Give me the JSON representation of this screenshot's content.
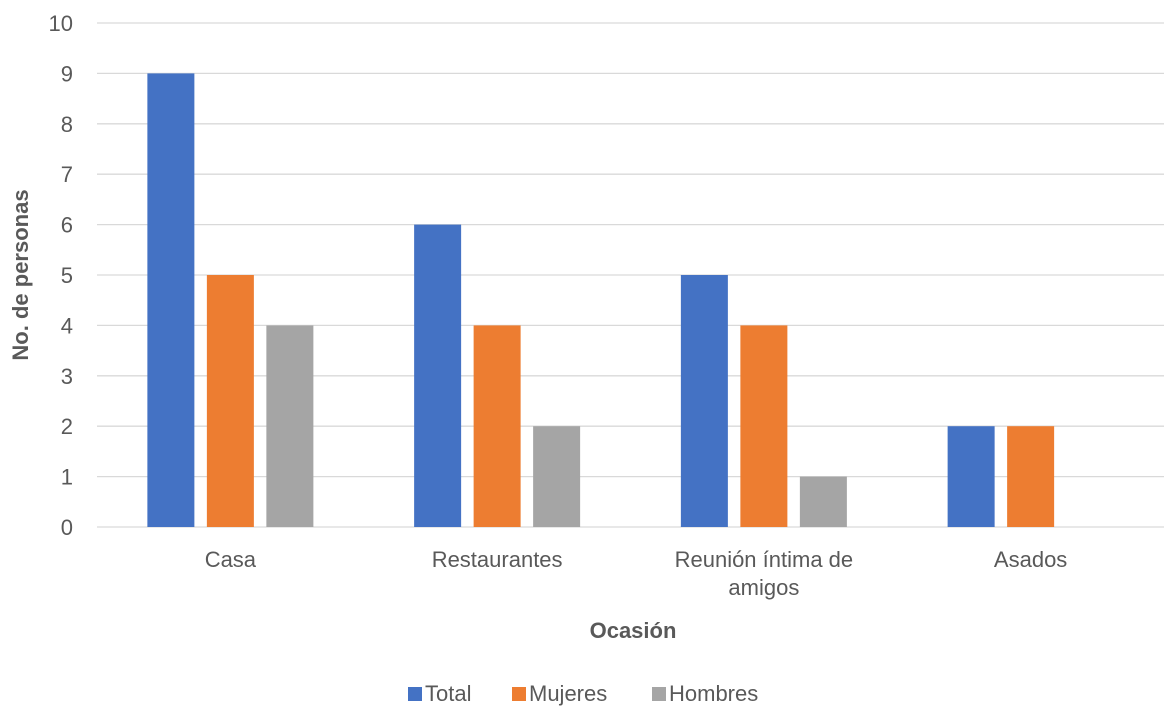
{
  "chart_data": {
    "type": "bar",
    "categories": [
      "Casa",
      "Restaurantes",
      "Reunión íntima de amigos",
      "Asados"
    ],
    "category_lines": [
      [
        "Casa"
      ],
      [
        "Restaurantes"
      ],
      [
        "Reunión íntima de",
        "amigos"
      ],
      [
        "Asados"
      ]
    ],
    "series": [
      {
        "name": "Total",
        "values": [
          9,
          6,
          5,
          2
        ],
        "color": "#4472C4"
      },
      {
        "name": "Mujeres",
        "values": [
          5,
          4,
          4,
          2
        ],
        "color": "#ED7D31"
      },
      {
        "name": "Hombres",
        "values": [
          4,
          2,
          1,
          0
        ],
        "color": "#A5A5A5"
      }
    ],
    "xlabel": "Ocasión",
    "ylabel": "No. de personas",
    "ylim": [
      0,
      10
    ],
    "yticks": [
      0,
      1,
      2,
      3,
      4,
      5,
      6,
      7,
      8,
      9,
      10
    ],
    "grid": true,
    "legend_position": "bottom",
    "gridline_color": "#D9D9D9"
  }
}
